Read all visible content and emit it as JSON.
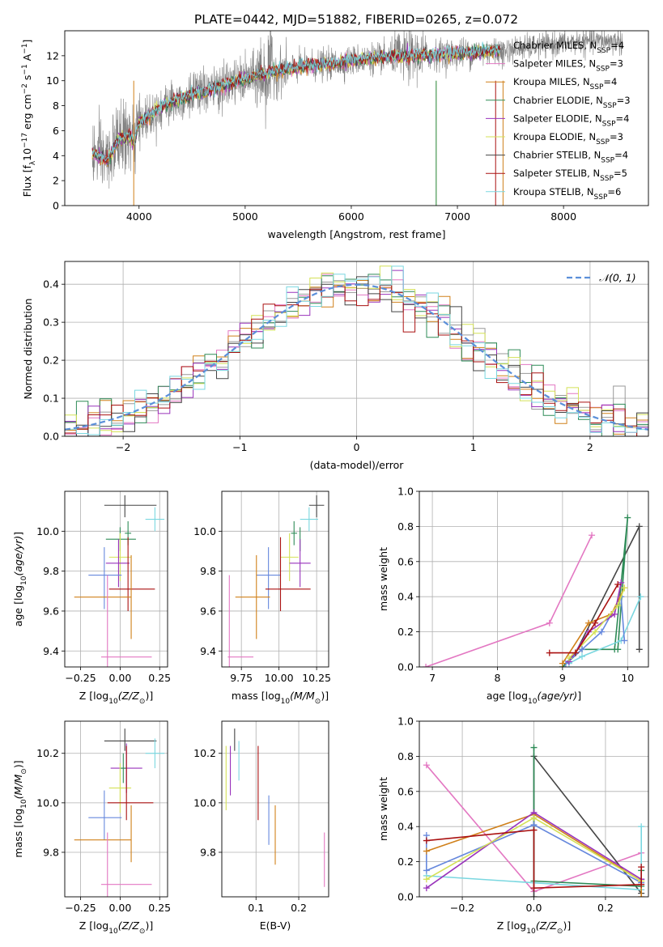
{
  "figure": {
    "title": "PLATE=0442, MJD=51882, FIBERID=0265, z=0.072"
  },
  "legend_models": [
    {
      "imf": "Chabrier",
      "lib": "MILES",
      "nssp": "4",
      "color": "#999999"
    },
    {
      "imf": "Salpeter",
      "lib": "MILES",
      "nssp": "3",
      "color": "#e377c2"
    },
    {
      "imf": "Kroupa",
      "lib": "MILES",
      "nssp": "4",
      "color": "#d0801a"
    },
    {
      "imf": "Chabrier",
      "lib": "ELODIE",
      "nssp": "3",
      "color": "#2e8b57"
    },
    {
      "imf": "Salpeter",
      "lib": "ELODIE",
      "nssp": "4",
      "color": "#9933bb"
    },
    {
      "imf": "Kroupa",
      "lib": "ELODIE",
      "nssp": "3",
      "color": "#d4e157"
    },
    {
      "imf": "Chabrier",
      "lib": "STELIB",
      "nssp": "4",
      "color": "#444444"
    },
    {
      "imf": "Salpeter",
      "lib": "STELIB",
      "nssp": "5",
      "color": "#aa1111"
    },
    {
      "imf": "Kroupa",
      "lib": "STELIB",
      "nssp": "6",
      "color": "#7ad7e0"
    }
  ],
  "chart_data": [
    {
      "id": "spectrum",
      "type": "line",
      "xlabel": "wavelength [Angstrom, rest frame]",
      "ylabel": "Flux [f",
      "ylabel_tail": "10",
      "ylabel_exp": "−17",
      "ylabel_units": " erg cm",
      "xlim": [
        3300,
        8800
      ],
      "ylim": [
        0,
        14
      ],
      "xticks": [
        4000,
        5000,
        6000,
        7000,
        8000
      ],
      "yticks": [
        0,
        2,
        4,
        6,
        8,
        10,
        12
      ],
      "continuum": {
        "x": [
          3550,
          3700,
          3800,
          3900,
          3950,
          4000,
          4200,
          4400,
          4600,
          4800,
          5000,
          5200,
          5400,
          5600,
          5800,
          6000,
          6200,
          6400,
          6600,
          6800,
          7000,
          7200,
          7400,
          7600,
          7800,
          8000,
          8200,
          8400,
          8550
        ],
        "y": [
          4.2,
          3.6,
          5.2,
          5.6,
          5.0,
          6.6,
          7.9,
          8.6,
          9.1,
          9.6,
          10.1,
          10.6,
          10.9,
          11.2,
          11.3,
          11.6,
          11.8,
          11.9,
          12.0,
          12.1,
          12.2,
          12.3,
          12.4,
          12.6,
          12.8,
          13.0,
          13.1,
          13.2,
          13.1
        ]
      }
    },
    {
      "id": "residual_hist",
      "type": "bar",
      "xlabel": "(data-model)/error",
      "ylabel": "Normed distribution",
      "legend": "𝒩(0, 1)",
      "xlim": [
        -2.5,
        2.5
      ],
      "ylim": [
        0,
        0.46
      ],
      "xticks": [
        -2,
        -1,
        0,
        1,
        2
      ],
      "yticks": [
        0.0,
        0.1,
        0.2,
        0.3,
        0.4
      ],
      "bin_width": 0.1
    },
    {
      "id": "age_vs_Z",
      "type": "scatter",
      "xlabel": "Z [log",
      "ylabel": "age  [log",
      "xlim": [
        -0.35,
        0.3
      ],
      "ylim": [
        9.32,
        10.2
      ],
      "xticks": [
        -0.25,
        0.0,
        0.25
      ],
      "yticks": [
        9.4,
        9.6,
        9.8,
        10.0
      ],
      "points": [
        {
          "x": 0.03,
          "y": 10.13,
          "xerr": [
            0.13,
            0.2
          ],
          "yerr": [
            0.06,
            0.05
          ],
          "color": "#444444"
        },
        {
          "x": 0.22,
          "y": 10.06,
          "xerr": [
            0.06,
            0.06
          ],
          "yerr": [
            0.06,
            0.06
          ],
          "color": "#7ad7e0"
        },
        {
          "x": 0.05,
          "y": 9.99,
          "xerr": [
            0.02,
            0.02
          ],
          "yerr": [
            0.06,
            0.06
          ],
          "color": "#2e8b57"
        },
        {
          "x": 0.0,
          "y": 9.96,
          "xerr": [
            0.09,
            0.1
          ],
          "yerr": [
            0.06,
            0.06
          ],
          "color": "#2e8b57"
        },
        {
          "x": 0.0,
          "y": 9.87,
          "xerr": [
            0.07,
            0.07
          ],
          "yerr": [
            0.12,
            0.12
          ],
          "color": "#d4e157"
        },
        {
          "x": -0.01,
          "y": 9.84,
          "xerr": [
            0.08,
            0.07
          ],
          "yerr": [
            0.12,
            0.12
          ],
          "color": "#9933bb"
        },
        {
          "x": -0.1,
          "y": 9.78,
          "xerr": [
            0.1,
            0.11
          ],
          "yerr": [
            0.17,
            0.14
          ],
          "color": "#6688dd"
        },
        {
          "x": 0.05,
          "y": 9.71,
          "xerr": [
            0.12,
            0.17
          ],
          "yerr": [
            0.11,
            0.26
          ],
          "color": "#aa1111"
        },
        {
          "x": 0.07,
          "y": 9.67,
          "xerr": [
            0.36,
            0.0
          ],
          "yerr": [
            0.21,
            0.21
          ],
          "color": "#d0801a"
        },
        {
          "x": -0.08,
          "y": 9.37,
          "xerr": [
            0.04,
            0.28
          ],
          "yerr": [
            0.05,
            0.41
          ],
          "color": "#e377c2"
        }
      ]
    },
    {
      "id": "age_vs_mass",
      "type": "scatter",
      "xlabel": "mass [log",
      "xlim": [
        9.62,
        10.33
      ],
      "ylim": [
        9.32,
        10.2
      ],
      "xticks": [
        9.75,
        10.0,
        10.25
      ],
      "yticks": [
        9.4,
        9.6,
        9.8,
        10.0
      ],
      "points": [
        {
          "x": 10.25,
          "y": 10.13,
          "xerr": [
            0.05,
            0.05
          ],
          "yerr": [
            0.06,
            0.05
          ],
          "color": "#444444"
        },
        {
          "x": 10.2,
          "y": 10.06,
          "xerr": [
            0.06,
            0.06
          ],
          "yerr": [
            0.06,
            0.06
          ],
          "color": "#7ad7e0"
        },
        {
          "x": 10.1,
          "y": 9.99,
          "xerr": [
            0.02,
            0.02
          ],
          "yerr": [
            0.06,
            0.06
          ],
          "color": "#2e8b57"
        },
        {
          "x": 10.14,
          "y": 9.96,
          "xerr": [
            0.0,
            0.0
          ],
          "yerr": [
            0.06,
            0.06
          ],
          "color": "#2e8b57"
        },
        {
          "x": 10.07,
          "y": 9.87,
          "xerr": [
            0.06,
            0.06
          ],
          "yerr": [
            0.12,
            0.12
          ],
          "color": "#d4e157"
        },
        {
          "x": 10.14,
          "y": 9.84,
          "xerr": [
            0.07,
            0.07
          ],
          "yerr": [
            0.12,
            0.12
          ],
          "color": "#9933bb"
        },
        {
          "x": 9.93,
          "y": 9.78,
          "xerr": [
            0.08,
            0.08
          ],
          "yerr": [
            0.17,
            0.14
          ],
          "color": "#6688dd"
        },
        {
          "x": 10.01,
          "y": 9.71,
          "xerr": [
            0.1,
            0.2
          ],
          "yerr": [
            0.11,
            0.26
          ],
          "color": "#aa1111"
        },
        {
          "x": 9.85,
          "y": 9.67,
          "xerr": [
            0.14,
            0.09
          ],
          "yerr": [
            0.21,
            0.21
          ],
          "color": "#d0801a"
        },
        {
          "x": 9.67,
          "y": 9.37,
          "xerr": [
            0.01,
            0.16
          ],
          "yerr": [
            0.05,
            0.41
          ],
          "color": "#e377c2"
        }
      ]
    },
    {
      "id": "weight_vs_age",
      "type": "line",
      "xlabel": "age  [log",
      "ylabel": "mass weight",
      "xlim": [
        6.8,
        10.32
      ],
      "ylim": [
        0,
        1
      ],
      "xticks": [
        7,
        8,
        9,
        10
      ],
      "yticks": [
        0.0,
        0.2,
        0.4,
        0.6,
        0.8,
        1.0
      ],
      "series": [
        {
          "color": "#e377c2",
          "x": [
            6.9,
            8.8,
            9.45
          ],
          "y": [
            0.0,
            0.25,
            0.75
          ]
        },
        {
          "color": "#444444",
          "x": [
            9.0,
            9.2,
            10.18,
            10.18
          ],
          "y": [
            0.0,
            0.08,
            0.8,
            0.1
          ]
        },
        {
          "color": "#2e8b57",
          "x": [
            9.0,
            9.3,
            9.8,
            10.0,
            9.85
          ],
          "y": [
            0.0,
            0.1,
            0.1,
            0.85,
            0.1
          ]
        },
        {
          "color": "#7ad7e0",
          "x": [
            9.1,
            9.3,
            9.9,
            10.2
          ],
          "y": [
            0.02,
            0.06,
            0.15,
            0.4
          ]
        },
        {
          "color": "#6688dd",
          "x": [
            9.05,
            9.3,
            9.6,
            9.9,
            9.95
          ],
          "y": [
            0.02,
            0.1,
            0.2,
            0.4,
            0.15
          ]
        },
        {
          "color": "#d0801a",
          "x": [
            9.0,
            9.4,
            9.75,
            9.95
          ],
          "y": [
            0.02,
            0.25,
            0.3,
            0.45
          ]
        },
        {
          "color": "#9933bb",
          "x": [
            9.1,
            9.4,
            9.8,
            9.9
          ],
          "y": [
            0.03,
            0.2,
            0.3,
            0.48
          ]
        },
        {
          "color": "#d4e157",
          "x": [
            9.1,
            9.5,
            9.85,
            9.95
          ],
          "y": [
            0.05,
            0.2,
            0.35,
            0.45
          ]
        },
        {
          "color": "#aa1111",
          "x": [
            8.8,
            9.2,
            9.5,
            9.85
          ],
          "y": [
            0.08,
            0.08,
            0.25,
            0.47
          ]
        }
      ]
    },
    {
      "id": "mass_vs_Z",
      "type": "scatter",
      "xlabel": "Z [log",
      "ylabel": "mass [log",
      "xlim": [
        -0.35,
        0.3
      ],
      "ylim": [
        9.62,
        10.33
      ],
      "xticks": [
        -0.25,
        0.0,
        0.25
      ],
      "yticks": [
        9.8,
        10.0,
        10.2
      ],
      "points": [
        {
          "x": 0.03,
          "y": 10.25,
          "xerr": [
            0.13,
            0.2
          ],
          "yerr": [
            0.04,
            0.05
          ],
          "color": "#444444"
        },
        {
          "x": 0.22,
          "y": 10.2,
          "xerr": [
            0.06,
            0.06
          ],
          "yerr": [
            0.06,
            0.06
          ],
          "color": "#7ad7e0"
        },
        {
          "x": 0.04,
          "y": 10.14,
          "xerr": [
            0.1,
            0.1
          ],
          "yerr": [
            0.1,
            0.1
          ],
          "color": "#9933bb"
        },
        {
          "x": 0.02,
          "y": 10.14,
          "xerr": [
            0.02,
            0.02
          ],
          "yerr": [
            0.06,
            0.06
          ],
          "color": "#2e8b57"
        },
        {
          "x": 0.0,
          "y": 10.06,
          "xerr": [
            0.07,
            0.07
          ],
          "yerr": [
            0.1,
            0.1
          ],
          "color": "#d4e157"
        },
        {
          "x": 0.04,
          "y": 10.0,
          "xerr": [
            0.12,
            0.17
          ],
          "yerr": [
            0.07,
            0.23
          ],
          "color": "#aa1111"
        },
        {
          "x": -0.1,
          "y": 9.94,
          "xerr": [
            0.1,
            0.11
          ],
          "yerr": [
            0.09,
            0.11
          ],
          "color": "#6688dd"
        },
        {
          "x": 0.07,
          "y": 9.85,
          "xerr": [
            0.36,
            0.0
          ],
          "yerr": [
            0.09,
            0.14
          ],
          "color": "#d0801a"
        },
        {
          "x": -0.08,
          "y": 9.67,
          "xerr": [
            0.04,
            0.28
          ],
          "yerr": [
            0.05,
            0.21
          ],
          "color": "#e377c2"
        }
      ]
    },
    {
      "id": "mass_vs_ebv",
      "type": "scatter",
      "xlabel": "E(B-V)",
      "xlim": [
        0.02,
        0.27
      ],
      "ylim": [
        9.62,
        10.33
      ],
      "xticks": [
        0.1,
        0.2
      ],
      "yticks": [
        9.8,
        10.0,
        10.2
      ],
      "points": [
        {
          "x": 0.03,
          "y": 10.1,
          "yerr": [
            0.13,
            0.13
          ],
          "color": "#d4e157"
        },
        {
          "x": 0.04,
          "y": 10.13,
          "yerr": [
            0.1,
            0.1
          ],
          "color": "#9933bb"
        },
        {
          "x": 0.05,
          "y": 10.25,
          "yerr": [
            0.04,
            0.05
          ],
          "color": "#444444"
        },
        {
          "x": 0.06,
          "y": 10.17,
          "yerr": [
            0.08,
            0.08
          ],
          "color": "#7ad7e0"
        },
        {
          "x": 0.105,
          "y": 10.08,
          "yerr": [
            0.15,
            0.15
          ],
          "color": "#aa1111"
        },
        {
          "x": 0.13,
          "y": 9.93,
          "yerr": [
            0.1,
            0.1
          ],
          "color": "#6688dd"
        },
        {
          "x": 0.145,
          "y": 9.87,
          "yerr": [
            0.12,
            0.12
          ],
          "color": "#d0801a"
        },
        {
          "x": 0.26,
          "y": 9.77,
          "yerr": [
            0.11,
            0.11
          ],
          "color": "#e377c2"
        }
      ]
    },
    {
      "id": "weight_vs_Z",
      "type": "line",
      "xlabel": "Z [log",
      "ylabel": "mass weight",
      "xlim": [
        -0.32,
        0.32
      ],
      "ylim": [
        0,
        1
      ],
      "xticks": [
        -0.2,
        0.0,
        0.2
      ],
      "yticks": [
        0.0,
        0.2,
        0.4,
        0.6,
        0.8,
        1.0
      ],
      "series": [
        {
          "color": "#e377c2",
          "x": [
            -0.3,
            0.0,
            0.3
          ],
          "y": [
            0.75,
            0.03,
            0.25
          ]
        },
        {
          "color": "#444444",
          "x": [
            0.0,
            0.0,
            0.3,
            0.3
          ],
          "y": [
            0.0,
            0.8,
            0.02,
            0.1
          ]
        },
        {
          "color": "#2e8b57",
          "x": [
            0.0,
            0.0,
            0.3,
            0.3
          ],
          "y": [
            0.85,
            0.09,
            0.06,
            0.15
          ]
        },
        {
          "color": "#7ad7e0",
          "x": [
            -0.3,
            0.3,
            0.3
          ],
          "y": [
            0.12,
            0.04,
            0.4
          ]
        },
        {
          "color": "#6688dd",
          "x": [
            -0.3,
            -0.3,
            0.0,
            0.3
          ],
          "y": [
            0.35,
            0.15,
            0.41,
            0.08
          ]
        },
        {
          "color": "#d0801a",
          "x": [
            -0.3,
            0.0,
            0.3,
            0.3
          ],
          "y": [
            0.26,
            0.47,
            0.09,
            0.0
          ]
        },
        {
          "color": "#9933bb",
          "x": [
            -0.3,
            0.0,
            0.3
          ],
          "y": [
            0.05,
            0.48,
            0.1
          ]
        },
        {
          "color": "#d4e157",
          "x": [
            -0.3,
            0.0,
            0.3
          ],
          "y": [
            0.1,
            0.45,
            0.09
          ]
        },
        {
          "color": "#aa1111",
          "x": [
            -0.3,
            0.0,
            0.0,
            0.3,
            0.3
          ],
          "y": [
            0.32,
            0.38,
            0.05,
            0.07,
            0.17
          ]
        }
      ]
    }
  ],
  "sub_Zsun": "10",
  "sub_zsun_tail": "(Z/Z",
  "label_age_unit": "(age/yr)"
}
